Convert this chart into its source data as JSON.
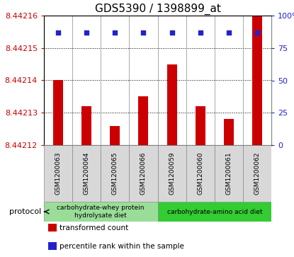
{
  "title": "GDS5390 / 1398899_at",
  "samples": [
    "GSM1200063",
    "GSM1200064",
    "GSM1200065",
    "GSM1200066",
    "GSM1200059",
    "GSM1200060",
    "GSM1200061",
    "GSM1200062"
  ],
  "transformed_counts": [
    8.44214,
    8.442132,
    8.442126,
    8.442135,
    8.442145,
    8.442132,
    8.442128,
    8.44216
  ],
  "percentile_ranks": [
    87,
    87,
    87,
    87,
    87,
    87,
    87,
    87
  ],
  "ylim_left": [
    8.44212,
    8.44216
  ],
  "ylim_right": [
    0,
    100
  ],
  "yticks_left": [
    8.44212,
    8.44213,
    8.44214,
    8.44215,
    8.44216
  ],
  "ytick_labels_right": [
    "0",
    "25",
    "50",
    "75",
    "100%"
  ],
  "yticks_right": [
    0,
    25,
    50,
    75,
    100
  ],
  "bar_color": "#cc0000",
  "dot_color": "#2222cc",
  "protocol_groups": [
    {
      "label": "carbohydrate-whey protein\nhydrolysate diet",
      "indices": [
        0,
        1,
        2,
        3
      ],
      "color": "#99dd99"
    },
    {
      "label": "carbohydrate-amino acid diet",
      "indices": [
        4,
        5,
        6,
        7
      ],
      "color": "#33cc33"
    }
  ],
  "legend_items": [
    {
      "label": "transformed count",
      "color": "#cc0000"
    },
    {
      "label": "percentile rank within the sample",
      "color": "#2222cc"
    }
  ],
  "protocol_label": "protocol",
  "tick_color_left": "#cc0000",
  "tick_color_right": "#2222cc",
  "title_fontsize": 11,
  "tick_fontsize": 8,
  "sample_fontsize": 6.5,
  "legend_fontsize": 7.5,
  "proto_fontsize": 6.5
}
